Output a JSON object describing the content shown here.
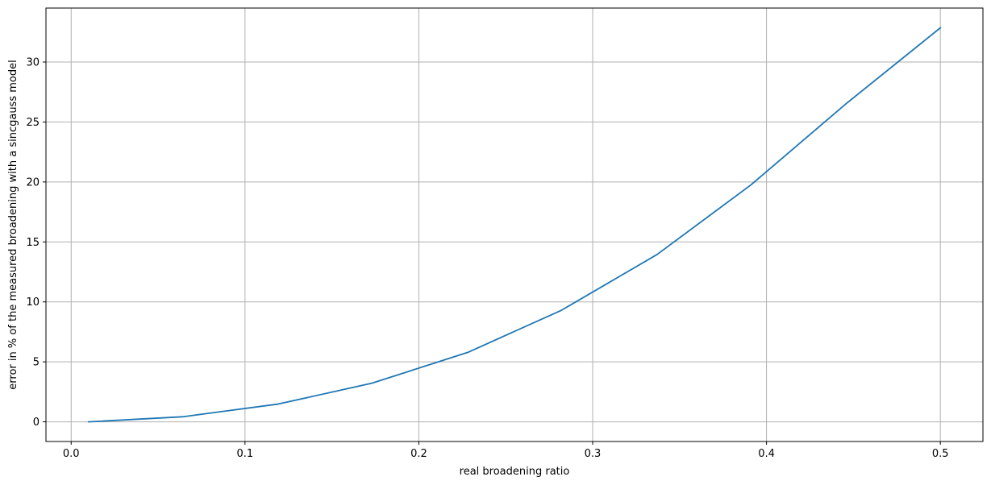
{
  "chart_data": {
    "type": "line",
    "title": "",
    "xlabel": "real broadening ratio",
    "ylabel": "error in % of the measured broadening with a sincgauss model",
    "xlim": [
      -0.0145,
      0.5245
    ],
    "ylim": [
      -1.64,
      34.5
    ],
    "xticks": [
      0.0,
      0.1,
      0.2,
      0.3,
      0.4,
      0.5
    ],
    "xtick_labels": [
      "0.0",
      "0.1",
      "0.2",
      "0.3",
      "0.4",
      "0.5"
    ],
    "yticks": [
      0,
      5,
      10,
      15,
      20,
      25,
      30
    ],
    "ytick_labels": [
      "0",
      "5",
      "10",
      "15",
      "20",
      "25",
      "30"
    ],
    "grid": true,
    "series": [
      {
        "color": "#1f77b4",
        "x": [
          0.01,
          0.064,
          0.119,
          0.173,
          0.228,
          0.282,
          0.337,
          0.391,
          0.446,
          0.5
        ],
        "y": [
          0.0,
          0.42,
          1.48,
          3.22,
          5.78,
          9.3,
          13.95,
          19.75,
          26.55,
          32.85
        ]
      }
    ]
  }
}
